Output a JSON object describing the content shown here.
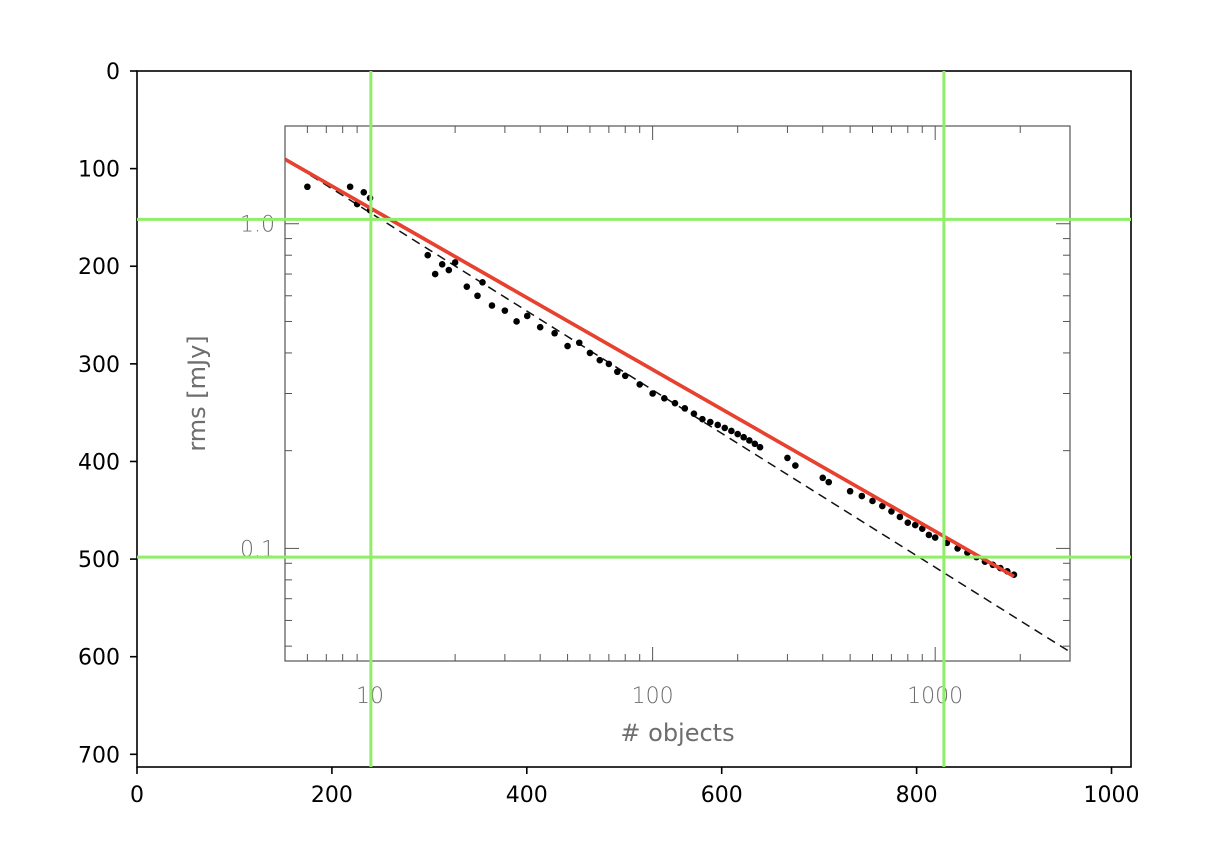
{
  "chart_data": {
    "type": "scatter",
    "description_outer": "screenshot of an image displayed on pixel-coordinate axes with green guide lines",
    "outer_axes": {
      "x_ticks": [
        "0",
        "200",
        "400",
        "600",
        "800",
        "1000"
      ],
      "y_ticks": [
        "0",
        "100",
        "200",
        "300",
        "400",
        "500",
        "600",
        "700"
      ],
      "xlim": [
        0,
        1020
      ],
      "ylim": [
        0,
        713
      ],
      "guide_lines": {
        "vertical_x": [
          240,
          828
        ],
        "horizontal_y": [
          152,
          498
        ],
        "color": "#90ee6a"
      }
    },
    "inner_chart": {
      "xlabel": "# objects",
      "ylabel": "rms [mJy]",
      "x_scale": "log",
      "y_scale": "log",
      "xlim": [
        5,
        3000
      ],
      "ylim": [
        0.045,
        2.0
      ],
      "x_ticks": [
        "10",
        "100",
        "1000"
      ],
      "y_ticks": [
        "1.0",
        "0.1"
      ],
      "series": [
        {
          "kind": "points",
          "color": "#000000",
          "x": [
            6,
            8.5,
            9,
            9.5,
            10,
            10,
            16,
            17,
            18,
            19,
            20,
            22,
            24,
            25,
            27,
            30,
            33,
            36,
            40,
            45,
            50,
            55,
            60,
            65,
            70,
            75,
            80,
            90,
            100,
            110,
            120,
            130,
            140,
            150,
            160,
            170,
            180,
            190,
            200,
            210,
            220,
            230,
            240,
            300,
            320,
            400,
            420,
            500,
            550,
            600,
            650,
            700,
            750,
            800,
            850,
            900,
            950,
            1000,
            1100,
            1200,
            1300,
            1400,
            1500,
            1600,
            1700,
            1800,
            1900
          ],
          "y": [
            1.3,
            1.3,
            1.15,
            1.25,
            1.1,
            1.2,
            0.8,
            0.7,
            0.75,
            0.72,
            0.76,
            0.64,
            0.6,
            0.66,
            0.56,
            0.54,
            0.5,
            0.52,
            0.48,
            0.46,
            0.42,
            0.43,
            0.4,
            0.38,
            0.37,
            0.35,
            0.34,
            0.32,
            0.3,
            0.29,
            0.28,
            0.27,
            0.26,
            0.25,
            0.245,
            0.24,
            0.235,
            0.23,
            0.225,
            0.22,
            0.215,
            0.21,
            0.205,
            0.19,
            0.18,
            0.165,
            0.16,
            0.15,
            0.145,
            0.14,
            0.135,
            0.13,
            0.125,
            0.12,
            0.118,
            0.115,
            0.11,
            0.108,
            0.104,
            0.1,
            0.097,
            0.094,
            0.091,
            0.089,
            0.087,
            0.085,
            0.083
          ]
        },
        {
          "kind": "line",
          "color": "#e8412f",
          "style": "solid",
          "x": [
            5,
            1900
          ],
          "y": [
            1.58,
            0.082
          ]
        },
        {
          "kind": "line",
          "color": "#111111",
          "style": "dashed",
          "x": [
            5,
            3000
          ],
          "y": [
            1.58,
            0.048
          ]
        }
      ]
    }
  }
}
